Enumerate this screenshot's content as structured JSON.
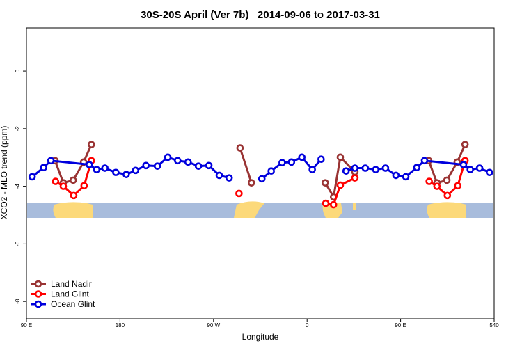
{
  "chart_data": {
    "type": "line",
    "title": "30S-20S April (Ver 7b)   2014-09-06 to 2017-03-31",
    "xlabel": "Longitude",
    "ylabel": "XCO2 - MLO trend (ppm)",
    "xlim": [
      90,
      540
    ],
    "ylim": [
      -8.6,
      1.5
    ],
    "xticks": [
      {
        "value": 90,
        "label": "90 E"
      },
      180,
      {
        "value": 270,
        "label": "90 W"
      },
      {
        "value": 360,
        "label": "0"
      },
      {
        "value": 450,
        "label": "90 E"
      },
      540
    ],
    "yticks": [
      0,
      -2,
      -4,
      -6,
      -8
    ],
    "legend": "lower left",
    "series": [
      {
        "name": "Land Nadir",
        "color": "#993333",
        "x": [
          117.5,
          125.5,
          135,
          145,
          152.5,
          null,
          295.5,
          306.5,
          null,
          377.5,
          385.5,
          392,
          406,
          null,
          477,
          485,
          494.5,
          504.5,
          512
        ],
        "values": [
          -3.11,
          -3.88,
          -3.79,
          -3.16,
          -2.55,
          null,
          -2.67,
          -3.88,
          null,
          -3.88,
          -4.37,
          -2.99,
          -3.5,
          null,
          -3.11,
          -3.88,
          -3.79,
          -3.16,
          -2.55
        ]
      },
      {
        "name": "Land Glint",
        "color": "#ff0000",
        "x": [
          118,
          125.5,
          135.5,
          145.5,
          152.5,
          null,
          294.5,
          null,
          378,
          385.5,
          392,
          406,
          null,
          477.5,
          485,
          495,
          505,
          512
        ],
        "values": [
          -3.83,
          -4.0,
          -4.32,
          -3.98,
          -3.11,
          null,
          -4.25,
          null,
          -4.59,
          -4.64,
          -3.96,
          -3.71,
          null,
          -3.83,
          -4.0,
          -4.32,
          -3.98,
          -3.11
        ]
      },
      {
        "name": "Ocean Glint",
        "color": "#0000dd",
        "x": [
          95.5,
          106.5,
          113.5,
          150.5,
          157.5,
          165.5,
          176,
          186,
          195,
          205,
          216,
          226,
          235.5,
          245.5,
          255.5,
          265.5,
          275.5,
          285,
          null,
          316.5,
          325.5,
          336,
          345,
          355,
          365,
          373.5,
          null,
          397.5,
          406,
          416,
          426,
          435.5,
          445.5,
          455,
          465.5,
          473,
          510.5,
          517,
          526,
          535.5
        ],
        "values": [
          -3.67,
          -3.35,
          -3.11,
          -3.25,
          -3.42,
          -3.37,
          -3.52,
          -3.59,
          -3.45,
          -3.28,
          -3.3,
          -2.99,
          -3.11,
          -3.16,
          -3.3,
          -3.28,
          -3.62,
          -3.71,
          null,
          -3.74,
          -3.47,
          -3.18,
          -3.16,
          -2.99,
          -3.42,
          -3.06,
          null,
          -3.47,
          -3.37,
          -3.37,
          -3.42,
          -3.37,
          -3.62,
          -3.67,
          -3.35,
          -3.11,
          -3.25,
          -3.42,
          -3.37,
          -3.52
        ]
      }
    ]
  }
}
